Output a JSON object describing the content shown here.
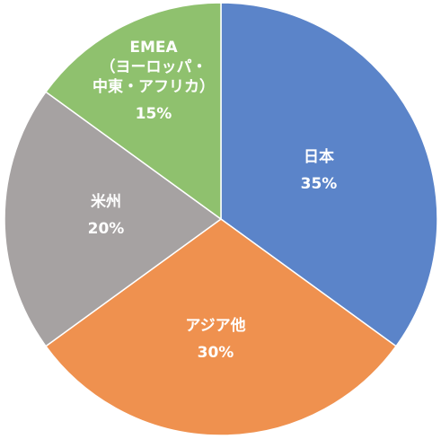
{
  "chart_data": {
    "type": "pie",
    "start_angle_deg": 0,
    "direction": "clockwise",
    "slices": [
      {
        "label_lines": [
          "日本"
        ],
        "percent_label": "35%",
        "value": 35,
        "color": "#5b84c9"
      },
      {
        "label_lines": [
          "アジア他"
        ],
        "percent_label": "30%",
        "value": 30,
        "color": "#ef914f"
      },
      {
        "label_lines": [
          "米州"
        ],
        "percent_label": "20%",
        "value": 20,
        "color": "#a6a2a2"
      },
      {
        "label_lines": [
          "EMEA",
          "（ヨーロッパ・",
          "中東・アフリカ）"
        ],
        "percent_label": "15%",
        "value": 15,
        "color": "#8fc16e"
      }
    ]
  }
}
